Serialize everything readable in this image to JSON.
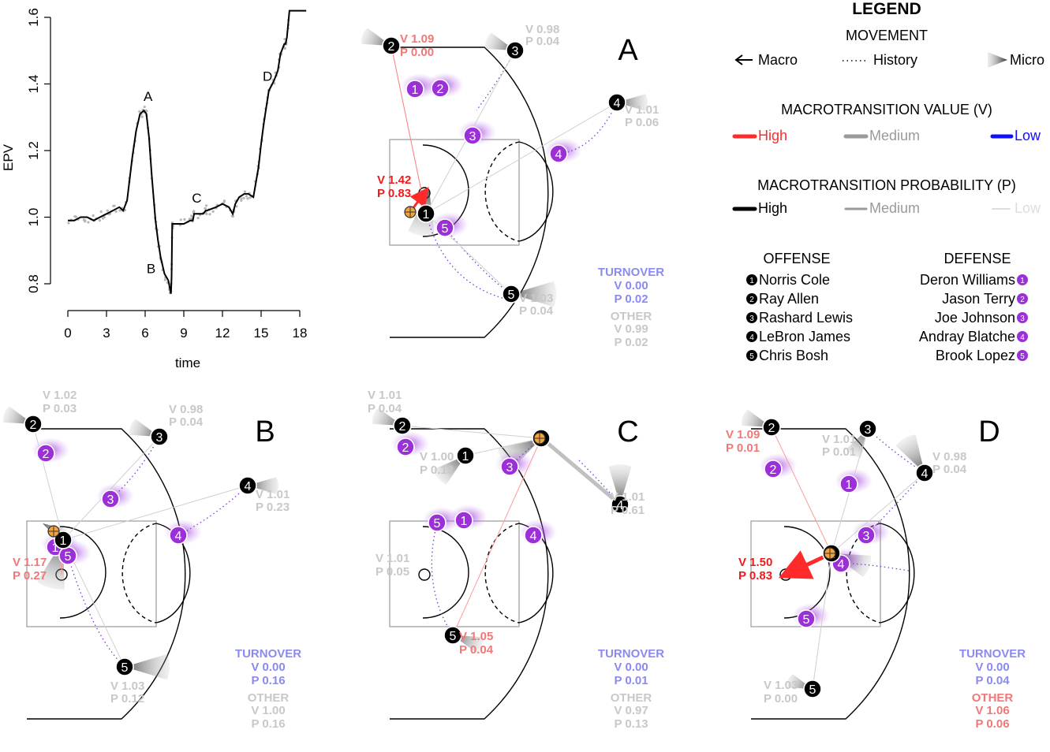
{
  "colors": {
    "high_value": "#ff2a2a",
    "medium_gray": "#9a9a9a",
    "low_value": "#1010ff",
    "turnover": "#8a8af0",
    "other_light": "#cccccc",
    "defense": "#9b30d9",
    "offense": "#000000",
    "court": "#000000"
  },
  "chart_data": [
    {
      "type": "line",
      "xlabel": "time",
      "ylabel": "EPV",
      "xticks": [
        0,
        3,
        6,
        9,
        12,
        15,
        18
      ],
      "yticks": [
        "0.8",
        "1.0",
        "1.2",
        "1.4",
        "1.6"
      ],
      "xlim": [
        0,
        18.5
      ],
      "ylim": [
        0.77,
        1.63
      ],
      "series": [
        {
          "x": [
            0,
            0.5,
            1,
            1.5,
            2,
            2.5,
            3,
            3.5,
            4,
            4.3,
            4.6,
            5,
            5.3,
            5.6,
            5.9,
            6.1,
            6.3,
            6.5,
            6.8,
            7.0,
            7.2,
            7.5,
            7.8,
            8.0,
            8.05,
            8.1,
            8.5,
            9,
            9.5,
            9.7,
            9.8,
            10.5,
            10.7,
            10.8,
            11.5,
            12,
            12.5,
            12.8,
            13,
            13.3,
            13.7,
            14,
            14.4,
            14.8,
            15,
            15.2,
            15.4,
            15.6,
            16,
            16.3,
            16.5,
            16.8,
            16.9,
            17,
            17.2,
            17.5,
            17.9,
            18.5
          ],
          "y": [
            0.99,
            0.99,
            1.0,
            1.0,
            0.99,
            1.0,
            1.01,
            1.02,
            1.03,
            1.02,
            1.05,
            1.18,
            1.26,
            1.31,
            1.32,
            1.31,
            1.24,
            1.13,
            0.99,
            0.93,
            0.88,
            0.83,
            0.81,
            0.77,
            0.82,
            0.98,
            0.98,
            0.98,
            0.99,
            0.99,
            1.01,
            1.01,
            1.02,
            1.02,
            1.03,
            1.04,
            1.03,
            1.01,
            1.04,
            1.06,
            1.07,
            1.07,
            1.06,
            1.15,
            1.22,
            1.28,
            1.33,
            1.38,
            1.41,
            1.44,
            1.49,
            1.52,
            1.52,
            1.54,
            1.62,
            1.62,
            1.62,
            1.62
          ]
        }
      ],
      "annotations": [
        {
          "label": "A",
          "x": 6.1,
          "y": 1.33
        },
        {
          "label": "B",
          "x": 7.2,
          "y": 0.87
        },
        {
          "label": "C",
          "x": 10.0,
          "y": 1.03
        },
        {
          "label": "D",
          "x": 15.5,
          "y": 1.41
        }
      ]
    }
  ],
  "panels": {
    "A": {
      "letter": "A",
      "labels": [
        {
          "text": "V 1.09",
          "tone": "high-light"
        },
        {
          "text": "P 0.00",
          "tone": "high-light"
        },
        {
          "text": "V 0.98",
          "tone": "light"
        },
        {
          "text": "P 0.04",
          "tone": "light"
        },
        {
          "text": "V 1.01",
          "tone": "light"
        },
        {
          "text": "P 0.06",
          "tone": "light"
        },
        {
          "text": "V 1.42",
          "tone": "high"
        },
        {
          "text": "P 0.83",
          "tone": "high"
        },
        {
          "text": "V 1.03",
          "tone": "light"
        },
        {
          "text": "P 0.04",
          "tone": "light"
        }
      ],
      "turnover": {
        "title": "TURNOVER",
        "v": "V 0.00",
        "p": "P 0.02"
      },
      "other": {
        "title": "OTHER",
        "v": "V 0.99",
        "p": "P 0.02",
        "tone": "light"
      }
    },
    "B": {
      "letter": "B",
      "labels": [
        {
          "text": "V 1.02",
          "tone": "light"
        },
        {
          "text": "P 0.03",
          "tone": "light"
        },
        {
          "text": "V 0.98",
          "tone": "light"
        },
        {
          "text": "P 0.04",
          "tone": "light"
        },
        {
          "text": "V 1.01",
          "tone": "light"
        },
        {
          "text": "P 0.23",
          "tone": "light"
        },
        {
          "text": "V 1.17",
          "tone": "high-light"
        },
        {
          "text": "P 0.27",
          "tone": "high-light"
        },
        {
          "text": "V 1.03",
          "tone": "light"
        },
        {
          "text": "P 0.12",
          "tone": "light"
        }
      ],
      "turnover": {
        "title": "TURNOVER",
        "v": "V 0.00",
        "p": "P 0.16"
      },
      "other": {
        "title": "OTHER",
        "v": "V 1.00",
        "p": "P 0.16",
        "tone": "light"
      }
    },
    "C": {
      "letter": "C",
      "labels": [
        {
          "text": "V 1.01",
          "tone": "light"
        },
        {
          "text": "P 0.04",
          "tone": "light"
        },
        {
          "text": "V 1.00",
          "tone": "light"
        },
        {
          "text": "P 0.13",
          "tone": "light"
        },
        {
          "text": "V 1.01",
          "tone": "light"
        },
        {
          "text": "P 0.61",
          "tone": "light"
        },
        {
          "text": "V 1.01",
          "tone": "light"
        },
        {
          "text": "P 0.05",
          "tone": "light"
        },
        {
          "text": "V 1.05",
          "tone": "high-light"
        },
        {
          "text": "P 0.04",
          "tone": "high-light"
        }
      ],
      "turnover": {
        "title": "TURNOVER",
        "v": "V 0.00",
        "p": "P 0.01"
      },
      "other": {
        "title": "OTHER",
        "v": "V 0.97",
        "p": "P 0.13",
        "tone": "light"
      }
    },
    "D": {
      "letter": "D",
      "labels": [
        {
          "text": "V 1.09",
          "tone": "high-light"
        },
        {
          "text": "P 0.01",
          "tone": "high-light"
        },
        {
          "text": "V 1.01",
          "tone": "light"
        },
        {
          "text": "P 0.01",
          "tone": "light"
        },
        {
          "text": "V 0.98",
          "tone": "light"
        },
        {
          "text": "P 0.04",
          "tone": "light"
        },
        {
          "text": "V 1.50",
          "tone": "high"
        },
        {
          "text": "P 0.83",
          "tone": "high"
        },
        {
          "text": "V 1.03",
          "tone": "light"
        },
        {
          "text": "P 0.00",
          "tone": "light"
        }
      ],
      "turnover": {
        "title": "TURNOVER",
        "v": "V 0.00",
        "p": "P 0.04"
      },
      "other": {
        "title": "OTHER",
        "v": "V 1.06",
        "p": "P 0.06",
        "tone": "high-light"
      }
    }
  },
  "legend": {
    "title": "LEGEND",
    "movement": {
      "title": "MOVEMENT",
      "items": [
        {
          "label": "Macro",
          "icon": "arrow-left-icon"
        },
        {
          "label": "History",
          "icon": "dotted-line-icon"
        },
        {
          "label": "Micro",
          "icon": "cone-icon"
        }
      ]
    },
    "value": {
      "title": "MACROTRANSITION VALUE (V)",
      "items": [
        {
          "label": "High",
          "color": "#ff2a2a"
        },
        {
          "label": "Medium",
          "color": "#9a9a9a"
        },
        {
          "label": "Low",
          "color": "#1010ff"
        }
      ]
    },
    "probability": {
      "title": "MACROTRANSITION PROBABILITY (P)",
      "items": [
        {
          "label": "High",
          "color": "#000000"
        },
        {
          "label": "Medium",
          "color": "#9a9a9a"
        },
        {
          "label": "Low",
          "color": "#dddddd"
        }
      ]
    },
    "offense": {
      "title": "OFFENSE",
      "players": [
        "Norris Cole",
        "Ray Allen",
        "Rashard Lewis",
        "LeBron James",
        "Chris Bosh"
      ]
    },
    "defense": {
      "title": "DEFENSE",
      "players": [
        "Deron Williams",
        "Jason Terry",
        "Joe Johnson",
        "Andray Blatche",
        "Brook Lopez"
      ]
    }
  }
}
